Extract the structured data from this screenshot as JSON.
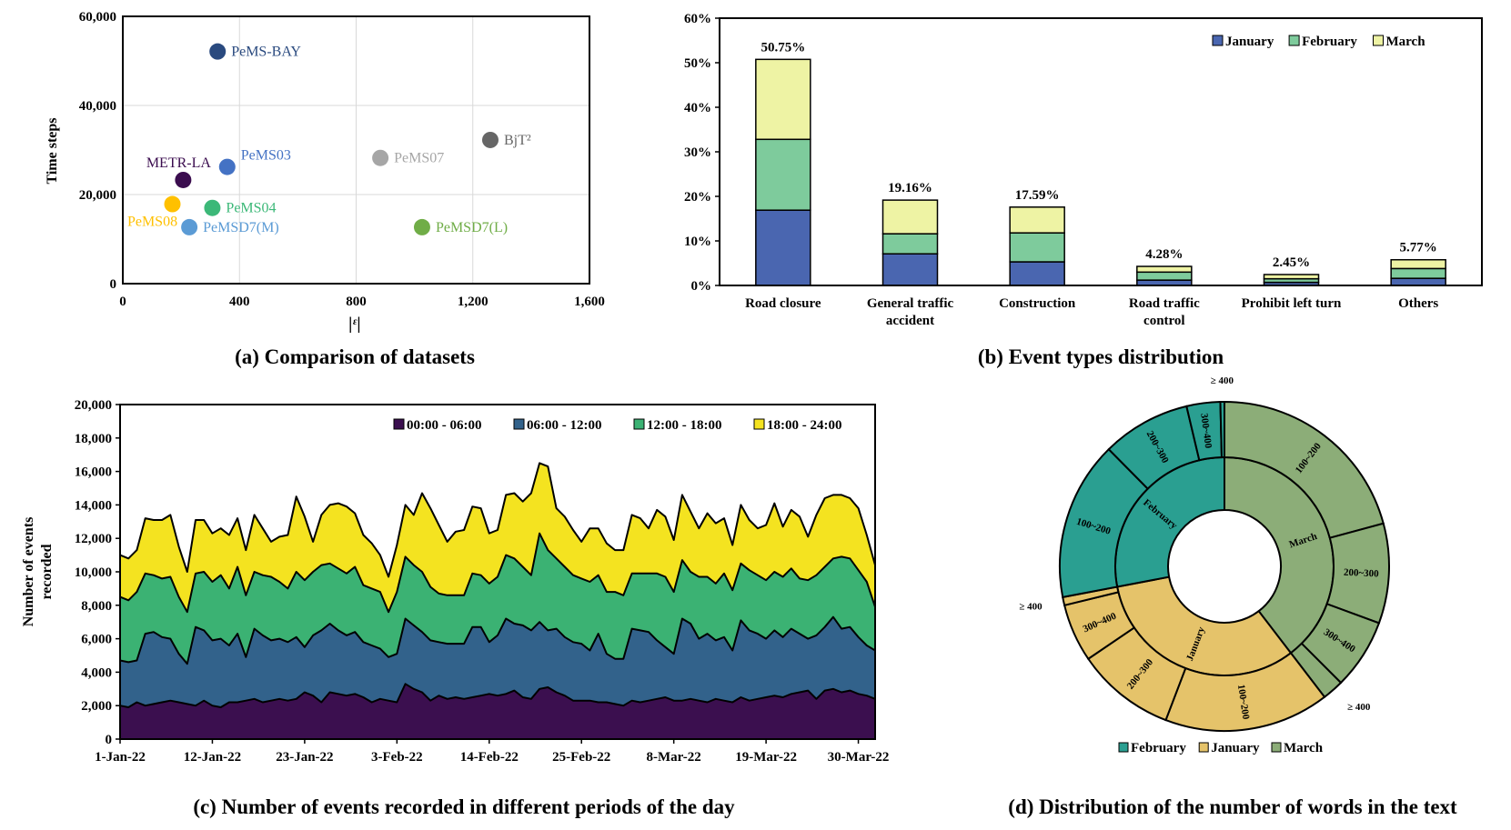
{
  "chart_data": [
    {
      "type": "scatter",
      "caption": "(a) Comparison of datasets",
      "xlabel": "|ᵋ|",
      "ylabel": "Time steps",
      "xlim": [
        0,
        1600
      ],
      "ylim": [
        0,
        60000
      ],
      "xticks": [
        "0",
        "400",
        "800",
        "1,200",
        "1,600"
      ],
      "yticks": [
        "0",
        "20,000",
        "40,000",
        "60,000"
      ],
      "points": [
        {
          "name": "PeMS-BAY",
          "x": 325,
          "y": 52116,
          "color": "#2a4a7f"
        },
        {
          "name": "BjT²",
          "x": 1260,
          "y": 32256,
          "color": "#666666"
        },
        {
          "name": "PeMS07",
          "x": 883,
          "y": 28224,
          "color": "#a6a6a6"
        },
        {
          "name": "PeMS03",
          "x": 358,
          "y": 26208,
          "color": "#4472c4"
        },
        {
          "name": "METR-LA",
          "x": 207,
          "y": 23274,
          "color": "#3b0d4f"
        },
        {
          "name": "PeMS08",
          "x": 170,
          "y": 17856,
          "color": "#ffc000"
        },
        {
          "name": "PeMS04",
          "x": 307,
          "y": 16992,
          "color": "#3cb878"
        },
        {
          "name": "PeMSD7(M)",
          "x": 228,
          "y": 12672,
          "color": "#5b9bd5"
        },
        {
          "name": "PeMSD7(L)",
          "x": 1026,
          "y": 12672,
          "color": "#70ad47"
        }
      ]
    },
    {
      "type": "bar",
      "stacked": true,
      "caption": "(b) Event types distribution",
      "categories": [
        "Road closure",
        "General traffic accident",
        "Construction",
        "Road traffic control",
        "Prohibit left turn",
        "Others"
      ],
      "category_lines": [
        [
          "Road closure"
        ],
        [
          "General traffic",
          "accident"
        ],
        [
          "Construction"
        ],
        [
          "Road traffic",
          "control"
        ],
        [
          "Prohibit left turn"
        ],
        [
          "Others"
        ]
      ],
      "totals_labels": [
        "50.75%",
        "19.16%",
        "17.59%",
        "4.28%",
        "2.45%",
        "5.77%"
      ],
      "series": [
        {
          "name": "January",
          "color": "#4a66b0",
          "values": [
            16.9,
            7.1,
            5.3,
            1.2,
            0.7,
            1.6
          ]
        },
        {
          "name": "February",
          "color": "#7ecb9c",
          "values": [
            15.9,
            4.5,
            6.5,
            1.8,
            0.8,
            2.2
          ]
        },
        {
          "name": "March",
          "color": "#eef3a4",
          "values": [
            17.95,
            7.56,
            5.79,
            1.28,
            0.95,
            1.97
          ]
        }
      ],
      "ylim": [
        0,
        60
      ],
      "yticks": [
        "0%",
        "10%",
        "20%",
        "30%",
        "40%",
        "50%",
        "60%"
      ],
      "legend": "top-right"
    },
    {
      "type": "area",
      "stacked": true,
      "caption": "(c) Number of events recorded in different periods of the day",
      "ylabel": "Number of events recorded",
      "ylabel_lines": [
        "Number of events",
        "recorded"
      ],
      "ylim": [
        0,
        20000
      ],
      "yticks": [
        "0",
        "2,000",
        "4,000",
        "6,000",
        "8,000",
        "10,000",
        "12,000",
        "14,000",
        "16,000",
        "18,000",
        "20,000"
      ],
      "xticks": [
        "1-Jan-22",
        "12-Jan-22",
        "23-Jan-22",
        "3-Feb-22",
        "14-Feb-22",
        "25-Feb-22",
        "8-Mar-22",
        "19-Mar-22",
        "30-Mar-22"
      ],
      "xticks_day_index": [
        0,
        11,
        22,
        33,
        44,
        55,
        66,
        77,
        88
      ],
      "num_days": 91,
      "series": [
        {
          "name": "00:00 - 06:00",
          "color": "#3b0f4f",
          "totals": [
            2000,
            1900,
            2200,
            2000,
            2100,
            2200,
            2300,
            2200,
            2100,
            2000,
            2300,
            2000,
            1900,
            2200,
            2200,
            2300,
            2400,
            2200,
            2300,
            2400,
            2300,
            2400,
            2800,
            2600,
            2200,
            2800,
            2700,
            2600,
            2700,
            2500,
            2200,
            2400,
            2300,
            2200,
            3300,
            3000,
            2800,
            2300,
            2600,
            2400,
            2500,
            2400,
            2500,
            2600,
            2700,
            2600,
            2700,
            2900,
            2500,
            2400,
            3000,
            3100,
            2800,
            2600,
            2300,
            2300,
            2300,
            2200,
            2200,
            2100,
            2000,
            2300,
            2200,
            2300,
            2400,
            2500,
            2300,
            2300,
            2400,
            2300,
            2200,
            2400,
            2300,
            2200,
            2500,
            2300,
            2400,
            2500,
            2600,
            2500,
            2700,
            2800,
            2900,
            2400,
            2900,
            3000,
            2800,
            2900,
            2700,
            2600,
            2400
          ]
        },
        {
          "name": "06:00 - 12:00",
          "color": "#32628b",
          "totals": [
            4700,
            4600,
            4700,
            6300,
            6400,
            6100,
            6000,
            5100,
            4500,
            6700,
            6500,
            5900,
            6000,
            5600,
            6300,
            4900,
            6600,
            6200,
            5900,
            6000,
            5800,
            6100,
            5500,
            6200,
            6500,
            6900,
            6500,
            6200,
            6400,
            5800,
            5600,
            5400,
            4900,
            5100,
            7200,
            6800,
            6400,
            5900,
            5800,
            5700,
            5700,
            5700,
            6700,
            6700,
            5800,
            6200,
            7200,
            6900,
            6800,
            6500,
            7000,
            6500,
            6600,
            6100,
            5800,
            5700,
            5300,
            6300,
            5100,
            4800,
            4800,
            6600,
            6500,
            6400,
            5900,
            5500,
            5100,
            7200,
            6900,
            6000,
            6300,
            5900,
            6100,
            5300,
            7100,
            6500,
            6300,
            6000,
            6500,
            6100,
            6600,
            6300,
            6000,
            6200,
            6700,
            7300,
            6600,
            6700,
            6100,
            5600,
            5300
          ]
        },
        {
          "name": "12:00 - 18:00",
          "color": "#3bb273",
          "totals": [
            8500,
            8300,
            8800,
            9900,
            9800,
            9600,
            9700,
            8500,
            7600,
            9900,
            10000,
            9400,
            9800,
            9000,
            10300,
            8600,
            10000,
            9800,
            9700,
            9400,
            9000,
            10000,
            9500,
            10000,
            10400,
            10500,
            10200,
            9900,
            10300,
            9200,
            9000,
            8800,
            7600,
            8800,
            10900,
            10400,
            10000,
            9100,
            8700,
            8600,
            8600,
            8600,
            9900,
            9800,
            9300,
            9700,
            11000,
            10800,
            10300,
            9800,
            12300,
            11300,
            10800,
            10300,
            9800,
            9600,
            9400,
            9800,
            8800,
            8800,
            8600,
            9900,
            9900,
            9900,
            9900,
            9700,
            8800,
            10700,
            10000,
            9700,
            9700,
            9300,
            9900,
            8900,
            10500,
            10100,
            9800,
            9500,
            10000,
            9700,
            10200,
            9600,
            9500,
            9800,
            10300,
            10800,
            10900,
            10800,
            10100,
            9400,
            7900
          ]
        },
        {
          "name": "18:00 - 24:00",
          "color": "#f4e320",
          "totals": [
            11000,
            10800,
            11300,
            13200,
            13100,
            13100,
            13400,
            11500,
            10000,
            13100,
            13100,
            12300,
            12600,
            12200,
            13200,
            11300,
            13400,
            12600,
            11800,
            12100,
            12200,
            14500,
            13300,
            11800,
            13400,
            14000,
            14100,
            13900,
            13500,
            12200,
            11700,
            11000,
            9700,
            11600,
            14000,
            13400,
            14700,
            13800,
            12800,
            11800,
            12400,
            12500,
            13900,
            13800,
            12300,
            12500,
            14600,
            14700,
            14200,
            14700,
            16500,
            16300,
            13800,
            13300,
            12500,
            11800,
            12600,
            12600,
            11700,
            11300,
            11300,
            13400,
            13200,
            12600,
            13700,
            13300,
            11900,
            14600,
            13600,
            12600,
            13500,
            12900,
            13200,
            11600,
            14000,
            13100,
            12600,
            12800,
            14100,
            12700,
            13700,
            13300,
            12100,
            13400,
            14400,
            14600,
            14600,
            14400,
            13800,
            12200,
            10400
          ]
        }
      ],
      "legend": "top-right"
    },
    {
      "type": "pie",
      "variant": "sunburst",
      "caption": "(d) Distribution of the number of words in the text",
      "inner": [
        {
          "name": "March",
          "color": "#8cad78",
          "value": 39.6
        },
        {
          "name": "January",
          "color": "#e5c36a",
          "value": 32.4
        },
        {
          "name": "February",
          "color": "#2a9f91",
          "value": 28.0
        }
      ],
      "outer": [
        {
          "parent": "March",
          "label": "100~200",
          "value": 20.8
        },
        {
          "parent": "March",
          "label": "200~300",
          "value": 9.8
        },
        {
          "parent": "March",
          "label": "300~400",
          "value": 6.9
        },
        {
          "parent": "March",
          "label": "≥ 400",
          "value": 2.1
        },
        {
          "parent": "January",
          "label": "100~200",
          "value": 16.2
        },
        {
          "parent": "January",
          "label": "200~300",
          "value": 9.7
        },
        {
          "parent": "January",
          "label": "300~400",
          "value": 5.7
        },
        {
          "parent": "January",
          "label": "≥ 400",
          "value": 0.8
        },
        {
          "parent": "February",
          "label": "100~200",
          "value": 15.6
        },
        {
          "parent": "February",
          "label": "200~300",
          "value": 8.7
        },
        {
          "parent": "February",
          "label": "300~400",
          "value": 3.3
        },
        {
          "parent": "February",
          "label": "≥ 400",
          "value": 0.4
        }
      ],
      "legend_order": [
        "February",
        "January",
        "March"
      ]
    }
  ]
}
